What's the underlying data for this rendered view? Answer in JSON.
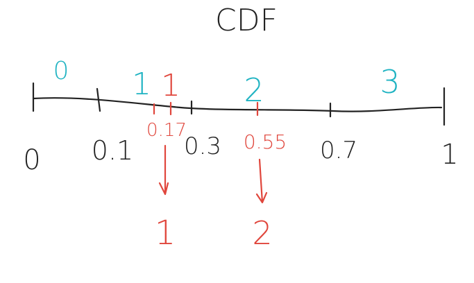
{
  "title": "CDF",
  "colors": {
    "ink": "#222222",
    "teal": "#1fb3c2",
    "red": "#e0463c"
  },
  "axis_ticks": [
    "0",
    "0.1",
    "0.3",
    "0.7",
    "1"
  ],
  "interval_labels": [
    "0",
    "1",
    "2",
    "3"
  ],
  "samples": [
    {
      "value": "0.17",
      "label": "1",
      "result": "1"
    },
    {
      "value": "0.55",
      "label": "2",
      "result": "2"
    }
  ]
}
